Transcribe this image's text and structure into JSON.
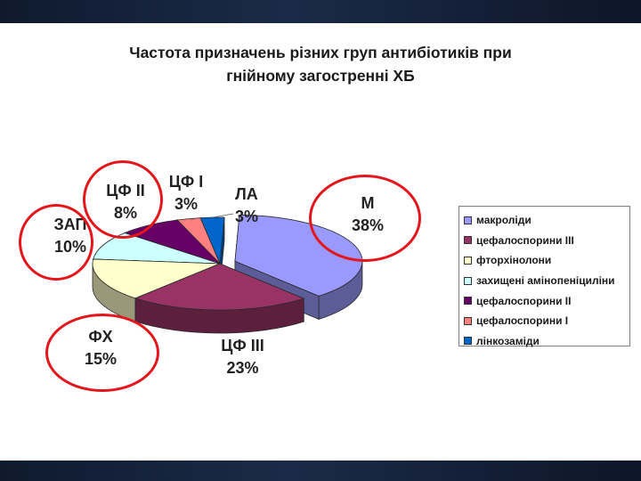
{
  "chart_data": {
    "type": "pie",
    "title": "Частота призначень різних груп антибіотиків при гнійному загостренні ХБ",
    "title_lines": [
      "Частота призначень різних груп антибіотиків при",
      "гнійному загостренні ХБ"
    ],
    "legend_position": "right",
    "three_d": true,
    "slices": [
      {
        "legend": "макроліди",
        "label": "М",
        "percent_label": "38%",
        "value": 38,
        "color": "#9999ff",
        "exploded": true
      },
      {
        "legend": "цефалоспорини ІІІ",
        "label": "ЦФ ІІІ",
        "percent_label": "23%",
        "value": 23,
        "color": "#993366",
        "exploded": false
      },
      {
        "legend": "фторхінолони",
        "label": "ФХ",
        "percent_label": "15%",
        "value": 15,
        "color": "#ffffcc",
        "exploded": false
      },
      {
        "legend": "захищені амінопеніциліни",
        "label": "ЗАП",
        "percent_label": "10%",
        "value": 10,
        "color": "#ccffff",
        "exploded": false
      },
      {
        "legend": "цефалоспорини ІІ",
        "label": "ЦФ ІІ",
        "percent_label": "8%",
        "value": 8,
        "color": "#660066",
        "exploded": false
      },
      {
        "legend": "цефалоспорини І",
        "label": "ЦФ І",
        "percent_label": "3%",
        "value": 3,
        "color": "#ff8080",
        "exploded": false
      },
      {
        "legend": "лінкозаміди",
        "label": "ЛА",
        "percent_label": "3%",
        "value": 3,
        "color": "#0066cc",
        "exploded": false
      }
    ],
    "highlight_color": "#e4161b",
    "highlighted_labels": [
      "ЦФ ІІ",
      "ЗАП",
      "М",
      "ФХ"
    ]
  }
}
